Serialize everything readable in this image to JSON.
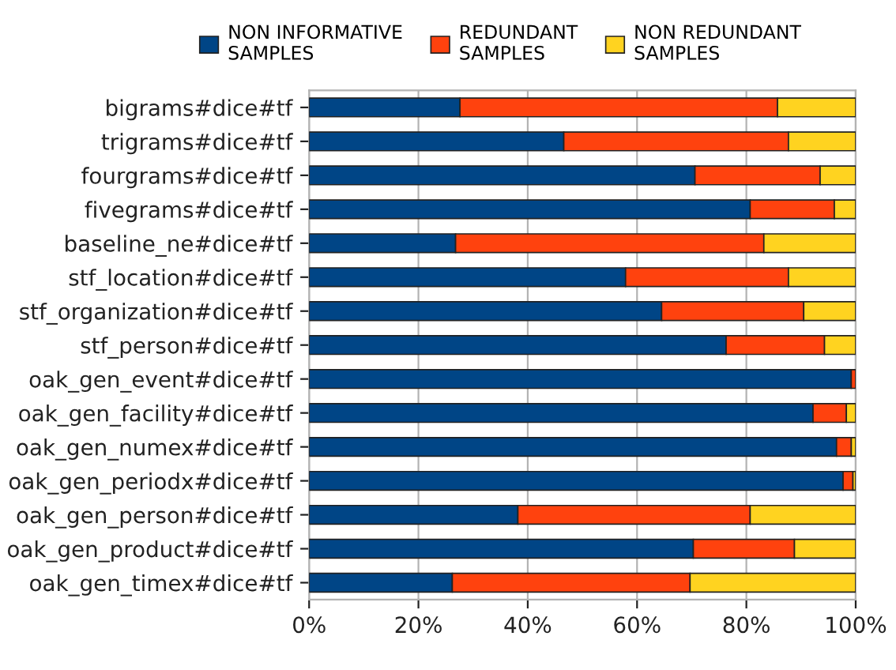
{
  "chart_data": {
    "type": "bar",
    "orientation": "horizontal",
    "stacked": true,
    "categories": [
      "bigrams#dice#tf",
      "trigrams#dice#tf",
      "fourgrams#dice#tf",
      "fivegrams#dice#tf",
      "baseline_ne#dice#tf",
      "stf_location#dice#tf",
      "stf_organization#dice#tf",
      "stf_person#dice#tf",
      "oak_gen_event#dice#tf",
      "oak_gen_facility#dice#tf",
      "oak_gen_numex#dice#tf",
      "oak_gen_periodx#dice#tf",
      "oak_gen_person#dice#tf",
      "oak_gen_product#dice#tf",
      "oak_gen_timex#dice#tf"
    ],
    "series": [
      {
        "name": "NON INFORMATIVE\nSAMPLES",
        "color": "#004586",
        "values": [
          27.6,
          46.6,
          70.6,
          80.7,
          26.8,
          57.9,
          64.5,
          76.3,
          99.2,
          92.2,
          96.5,
          97.7,
          38.2,
          70.3,
          26.2
        ]
      },
      {
        "name": "REDUNDANT\nSAMPLES",
        "color": "#ff420e",
        "values": [
          58.1,
          41.1,
          22.9,
          15.4,
          56.4,
          29.8,
          26.0,
          18.0,
          0.8,
          6.1,
          2.7,
          1.8,
          42.5,
          18.5,
          43.5
        ]
      },
      {
        "name": "NON REDUNDANT\nSAMPLES",
        "color": "#ffd320",
        "values": [
          14.3,
          12.3,
          6.5,
          3.9,
          16.8,
          12.3,
          9.5,
          5.7,
          null,
          1.7,
          0.8,
          0.5,
          19.3,
          11.2,
          30.3
        ]
      }
    ],
    "xlim": [
      0,
      100
    ],
    "xticks": [
      {
        "value": 0,
        "label": "0%"
      },
      {
        "value": 20,
        "label": "20%"
      },
      {
        "value": 40,
        "label": "40%"
      },
      {
        "value": 60,
        "label": "60%"
      },
      {
        "value": 80,
        "label": "80%"
      },
      {
        "value": 100,
        "label": "100%"
      }
    ],
    "grid": "x",
    "legend": "top"
  }
}
